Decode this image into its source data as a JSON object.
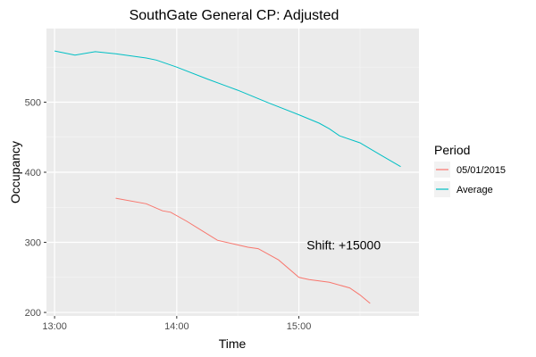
{
  "chart_data": {
    "type": "line",
    "title": "SouthGate General CP: Adjusted",
    "xlabel": "Time",
    "ylabel": "Occupancy",
    "xlim": [
      "12:56",
      "15:59"
    ],
    "ylim": [
      195,
      605
    ],
    "x_ticks": [
      "13:00",
      "14:00",
      "15:00"
    ],
    "y_ticks": [
      200,
      300,
      400,
      500
    ],
    "grid": true,
    "legend": {
      "title": "Period",
      "position": "right"
    },
    "annotation": {
      "text": "Shift: +15000",
      "x": "15:22",
      "y": 290
    },
    "series": [
      {
        "name": "05/01/2015",
        "color": "#F8766D",
        "points": [
          [
            "13:30",
            363
          ],
          [
            "13:45",
            355
          ],
          [
            "13:53",
            345
          ],
          [
            "13:57",
            343
          ],
          [
            "14:05",
            330
          ],
          [
            "14:20",
            303
          ],
          [
            "14:35",
            293
          ],
          [
            "14:40",
            291
          ],
          [
            "14:50",
            275
          ],
          [
            "15:00",
            250
          ],
          [
            "15:05",
            247
          ],
          [
            "15:15",
            243
          ],
          [
            "15:25",
            235
          ],
          [
            "15:30",
            225
          ],
          [
            "15:35",
            213
          ]
        ]
      },
      {
        "name": "Average",
        "color": "#00BFC4",
        "points": [
          [
            "13:00",
            573
          ],
          [
            "13:10",
            567
          ],
          [
            "13:20",
            572
          ],
          [
            "13:30",
            569
          ],
          [
            "13:45",
            563
          ],
          [
            "13:50",
            560
          ],
          [
            "14:00",
            550
          ],
          [
            "14:15",
            533
          ],
          [
            "14:30",
            517
          ],
          [
            "14:45",
            499
          ],
          [
            "15:00",
            482
          ],
          [
            "15:10",
            470
          ],
          [
            "15:15",
            462
          ],
          [
            "15:20",
            452
          ],
          [
            "15:30",
            442
          ],
          [
            "15:40",
            425
          ],
          [
            "15:50",
            408
          ]
        ]
      }
    ]
  }
}
